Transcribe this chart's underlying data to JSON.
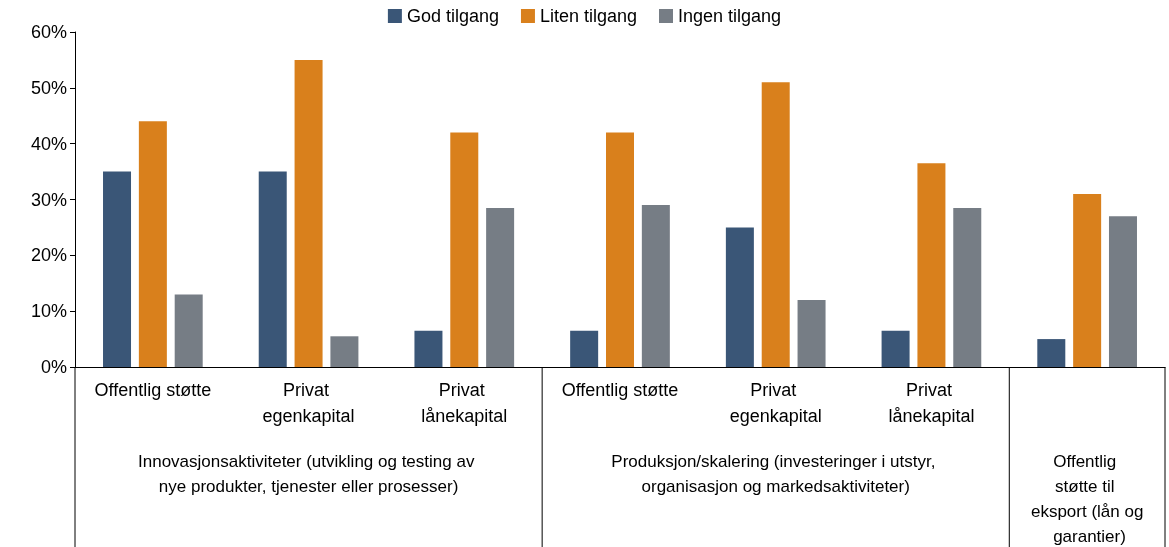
{
  "chart_data": {
    "type": "bar",
    "categories": [
      "Offentlig støtte",
      "Privat egenkapital",
      "Privat lånekapital",
      "Offentlig støtte",
      "Privat egenkapital",
      "Privat lånekapital",
      null
    ],
    "series": [
      {
        "name": "God tilgang",
        "color": "#3a5677",
        "values": [
          35,
          35,
          6.5,
          6.5,
          25,
          6.5,
          5
        ]
      },
      {
        "name": "Liten tilgang",
        "color": "#d9801c",
        "values": [
          44,
          55,
          42,
          42,
          51,
          36.5,
          31
        ]
      },
      {
        "name": "Ingen tilgang",
        "color": "#767d85",
        "values": [
          13,
          5.5,
          28.5,
          29,
          12,
          28.5,
          27
        ]
      }
    ],
    "ylim": [
      0,
      60
    ],
    "yticks": [
      {
        "value": 0,
        "label": "0%"
      },
      {
        "value": 10,
        "label": "10%"
      },
      {
        "value": 20,
        "label": "20%"
      },
      {
        "value": 30,
        "label": "30%"
      },
      {
        "value": 40,
        "label": "40%"
      },
      {
        "value": 50,
        "label": "50%"
      },
      {
        "value": 60,
        "label": "60%"
      }
    ],
    "grid": false,
    "legend": "top",
    "annotations": [
      "Innovasjonsaktiviteter (utvikling og testing av nye produkter, tjenester eller prosesser)",
      "Produksjon/skalering (investeringer i utstyr, organisasjon og markedsaktiviteter)",
      "Offentlig støtte til eksport (lån og garantier)"
    ]
  }
}
